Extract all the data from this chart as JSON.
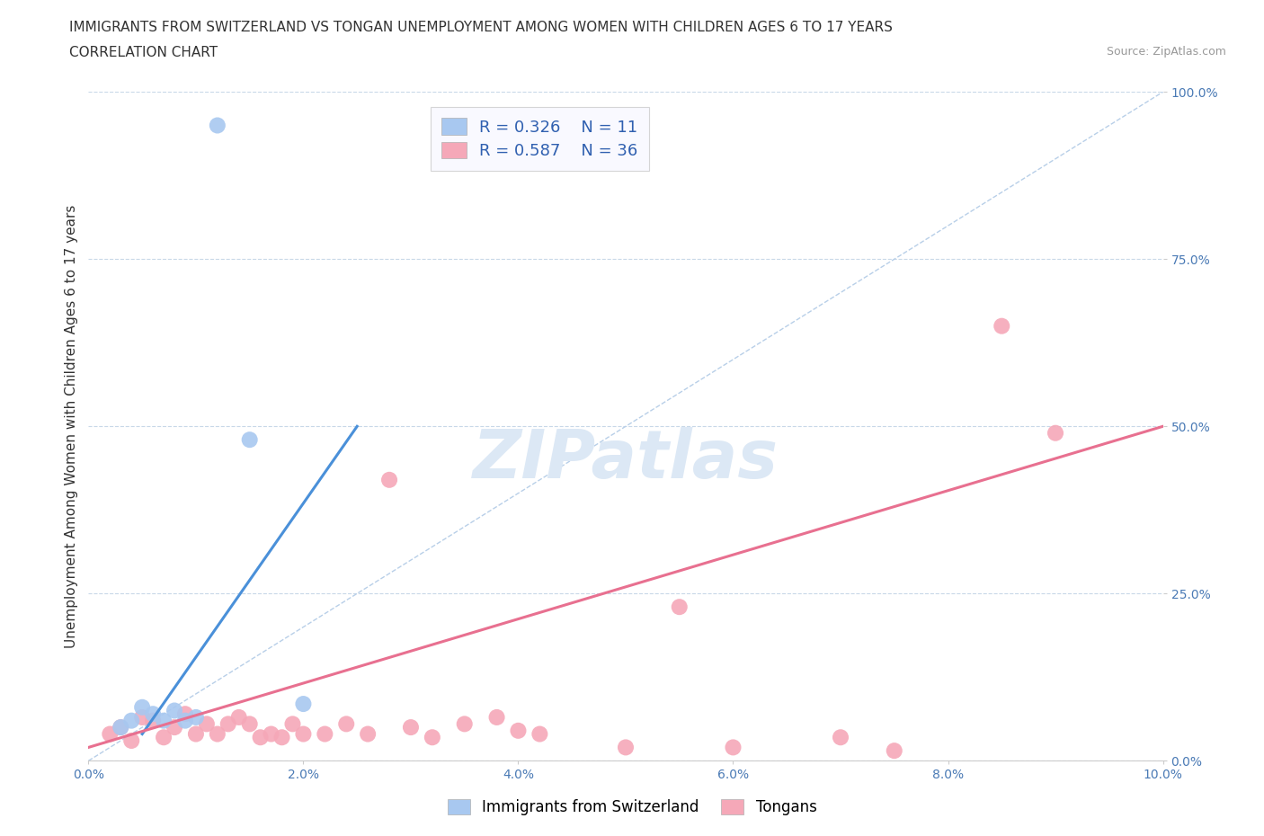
{
  "title_line1": "IMMIGRANTS FROM SWITZERLAND VS TONGAN UNEMPLOYMENT AMONG WOMEN WITH CHILDREN AGES 6 TO 17 YEARS",
  "title_line2": "CORRELATION CHART",
  "source_text": "Source: ZipAtlas.com",
  "ylabel": "Unemployment Among Women with Children Ages 6 to 17 years",
  "xmin": 0.0,
  "xmax": 0.1,
  "ymin": 0.0,
  "ymax": 1.0,
  "yticks": [
    0.0,
    0.25,
    0.5,
    0.75,
    1.0
  ],
  "ytick_labels": [
    "0.0%",
    "25.0%",
    "50.0%",
    "75.0%",
    "100.0%"
  ],
  "xticks": [
    0.0,
    0.02,
    0.04,
    0.06,
    0.08,
    0.1
  ],
  "xtick_labels": [
    "0.0%",
    "2.0%",
    "4.0%",
    "6.0%",
    "8.0%",
    "10.0%"
  ],
  "swiss_R": 0.326,
  "swiss_N": 11,
  "tongan_R": 0.587,
  "tongan_N": 36,
  "swiss_color": "#a8c8f0",
  "tongan_color": "#f5a8b8",
  "swiss_line_color": "#4a90d9",
  "tongan_line_color": "#e87090",
  "diagonal_color": "#b8cfe8",
  "watermark_color": "#dce8f5",
  "background_color": "#ffffff",
  "swiss_points_x": [
    0.003,
    0.004,
    0.005,
    0.006,
    0.007,
    0.008,
    0.009,
    0.01,
    0.012,
    0.015,
    0.02
  ],
  "swiss_points_y": [
    0.05,
    0.06,
    0.08,
    0.07,
    0.06,
    0.075,
    0.06,
    0.065,
    0.95,
    0.48,
    0.085
  ],
  "tongan_points_x": [
    0.002,
    0.003,
    0.004,
    0.005,
    0.006,
    0.007,
    0.008,
    0.009,
    0.01,
    0.011,
    0.012,
    0.013,
    0.014,
    0.015,
    0.016,
    0.017,
    0.018,
    0.019,
    0.02,
    0.022,
    0.024,
    0.026,
    0.028,
    0.03,
    0.032,
    0.035,
    0.038,
    0.04,
    0.042,
    0.05,
    0.055,
    0.06,
    0.07,
    0.075,
    0.085,
    0.09
  ],
  "tongan_points_y": [
    0.04,
    0.05,
    0.03,
    0.065,
    0.06,
    0.035,
    0.05,
    0.07,
    0.04,
    0.055,
    0.04,
    0.055,
    0.065,
    0.055,
    0.035,
    0.04,
    0.035,
    0.055,
    0.04,
    0.04,
    0.055,
    0.04,
    0.42,
    0.05,
    0.035,
    0.055,
    0.065,
    0.045,
    0.04,
    0.02,
    0.23,
    0.02,
    0.035,
    0.015,
    0.65,
    0.49
  ],
  "swiss_line_x": [
    0.005,
    0.025
  ],
  "swiss_line_y": [
    0.04,
    0.5
  ],
  "tongan_line_x": [
    0.0,
    0.1
  ],
  "tongan_line_y": [
    0.02,
    0.5
  ],
  "legend_text_color": "#3060b0",
  "title_fontsize": 11,
  "subtitle_fontsize": 11,
  "axis_label_fontsize": 11,
  "tick_fontsize": 10,
  "legend_fontsize": 13,
  "marker_size": 13
}
